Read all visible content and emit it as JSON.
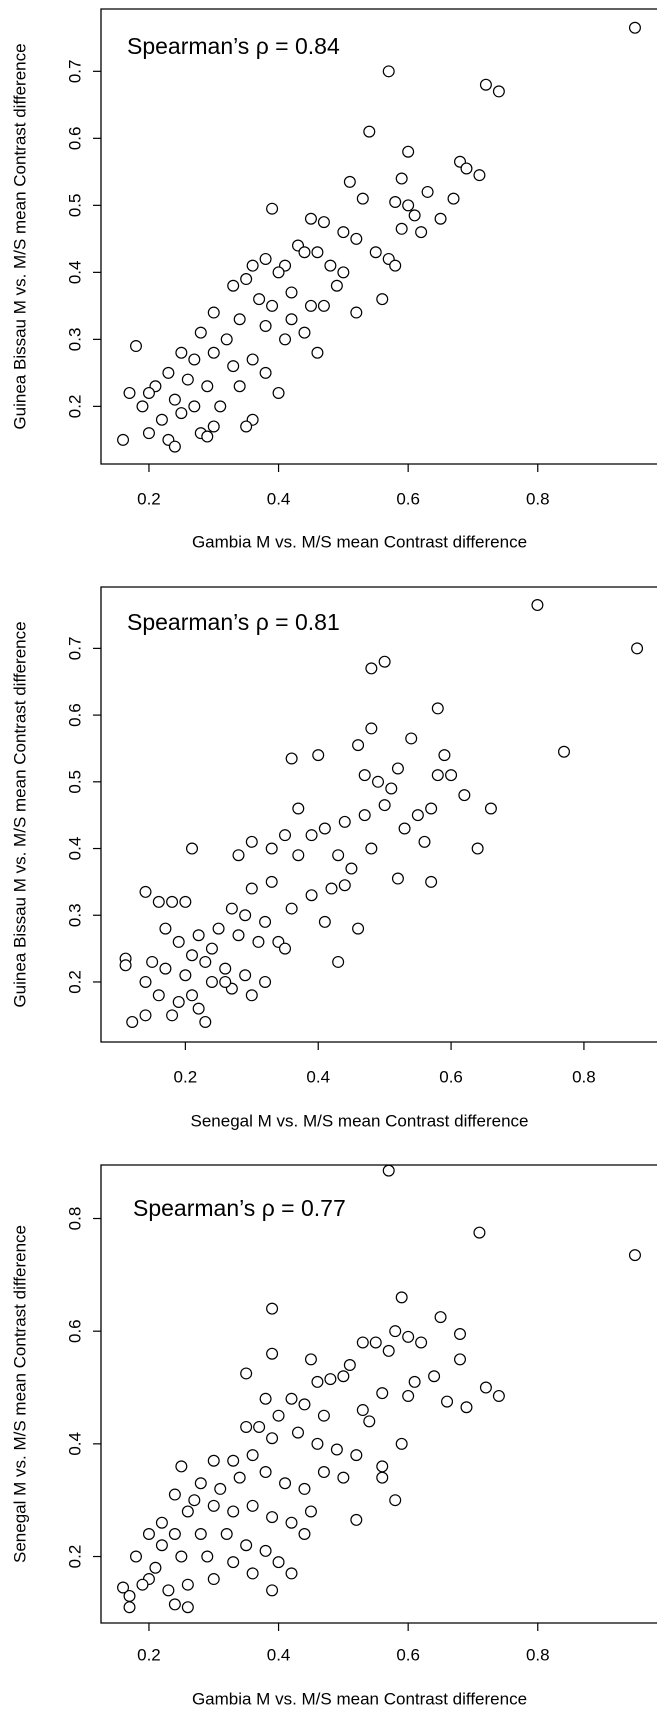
{
  "chart_data": [
    {
      "type": "scatter",
      "annotation": "Spearman’s ρ = 0.84",
      "xlabel": "Gambia M vs. M/S mean Contrast difference",
      "ylabel": "Guinea Bissau M vs. M/S mean Contrast difference",
      "xlim": [
        0.126,
        0.984
      ],
      "ylim": [
        0.114,
        0.793
      ],
      "xticks": [
        0.2,
        0.4,
        0.6,
        0.8
      ],
      "yticks": [
        0.2,
        0.3,
        0.4,
        0.5,
        0.6,
        0.7
      ],
      "color": "#000000",
      "x": [
        0.95,
        0.57,
        0.72,
        0.74,
        0.54,
        0.6,
        0.68,
        0.69,
        0.71,
        0.59,
        0.51,
        0.63,
        0.67,
        0.53,
        0.6,
        0.39,
        0.58,
        0.61,
        0.65,
        0.59,
        0.62,
        0.45,
        0.47,
        0.5,
        0.52,
        0.55,
        0.57,
        0.58,
        0.43,
        0.44,
        0.46,
        0.41,
        0.38,
        0.36,
        0.4,
        0.5,
        0.49,
        0.47,
        0.52,
        0.56,
        0.35,
        0.33,
        0.37,
        0.42,
        0.45,
        0.3,
        0.34,
        0.38,
        0.41,
        0.44,
        0.46,
        0.32,
        0.28,
        0.3,
        0.25,
        0.27,
        0.33,
        0.36,
        0.38,
        0.4,
        0.34,
        0.29,
        0.26,
        0.23,
        0.21,
        0.18,
        0.2,
        0.24,
        0.27,
        0.31,
        0.36,
        0.35,
        0.3,
        0.25,
        0.22,
        0.19,
        0.17,
        0.2,
        0.23,
        0.28,
        0.16,
        0.24,
        0.29,
        0.42,
        0.48,
        0.39
      ],
      "values": [
        0.765,
        0.7,
        0.68,
        0.67,
        0.61,
        0.58,
        0.565,
        0.555,
        0.545,
        0.54,
        0.535,
        0.52,
        0.51,
        0.51,
        0.5,
        0.495,
        0.505,
        0.485,
        0.48,
        0.465,
        0.46,
        0.48,
        0.475,
        0.46,
        0.45,
        0.43,
        0.42,
        0.41,
        0.44,
        0.43,
        0.43,
        0.41,
        0.42,
        0.41,
        0.4,
        0.4,
        0.38,
        0.35,
        0.34,
        0.36,
        0.39,
        0.38,
        0.36,
        0.37,
        0.35,
        0.34,
        0.33,
        0.32,
        0.3,
        0.31,
        0.28,
        0.3,
        0.31,
        0.28,
        0.28,
        0.27,
        0.26,
        0.27,
        0.25,
        0.22,
        0.23,
        0.23,
        0.24,
        0.25,
        0.23,
        0.29,
        0.22,
        0.21,
        0.2,
        0.2,
        0.18,
        0.17,
        0.17,
        0.19,
        0.18,
        0.2,
        0.22,
        0.16,
        0.15,
        0.16,
        0.15,
        0.14,
        0.155,
        0.33,
        0.41,
        0.35
      ]
    },
    {
      "type": "scatter",
      "annotation": "Spearman’s ρ = 0.81",
      "xlabel": "Senegal M vs. M/S mean Contrast difference",
      "ylabel": "Guinea Bissau M vs. M/S mean Contrast difference",
      "xlim": [
        0.073,
        0.91
      ],
      "ylim": [
        0.11,
        0.792
      ],
      "xticks": [
        0.2,
        0.4,
        0.6,
        0.8
      ],
      "yticks": [
        0.2,
        0.3,
        0.4,
        0.5,
        0.6,
        0.7
      ],
      "color": "#000000",
      "x": [
        0.73,
        0.88,
        0.48,
        0.5,
        0.58,
        0.48,
        0.77,
        0.36,
        0.4,
        0.46,
        0.54,
        0.59,
        0.58,
        0.6,
        0.52,
        0.47,
        0.49,
        0.51,
        0.62,
        0.66,
        0.5,
        0.57,
        0.37,
        0.44,
        0.47,
        0.55,
        0.53,
        0.56,
        0.64,
        0.48,
        0.39,
        0.41,
        0.35,
        0.3,
        0.33,
        0.37,
        0.43,
        0.45,
        0.28,
        0.52,
        0.57,
        0.42,
        0.39,
        0.44,
        0.33,
        0.3,
        0.36,
        0.41,
        0.46,
        0.43,
        0.27,
        0.29,
        0.32,
        0.25,
        0.28,
        0.31,
        0.34,
        0.35,
        0.22,
        0.24,
        0.21,
        0.14,
        0.16,
        0.18,
        0.2,
        0.17,
        0.19,
        0.21,
        0.23,
        0.26,
        0.29,
        0.32,
        0.3,
        0.27,
        0.24,
        0.2,
        0.17,
        0.15,
        0.11,
        0.11,
        0.14,
        0.16,
        0.19,
        0.22,
        0.18,
        0.14,
        0.12,
        0.23,
        0.21,
        0.26
      ],
      "values": [
        0.765,
        0.7,
        0.67,
        0.68,
        0.61,
        0.58,
        0.545,
        0.535,
        0.54,
        0.555,
        0.565,
        0.54,
        0.51,
        0.51,
        0.52,
        0.51,
        0.5,
        0.49,
        0.48,
        0.46,
        0.465,
        0.46,
        0.46,
        0.44,
        0.45,
        0.45,
        0.43,
        0.41,
        0.4,
        0.4,
        0.42,
        0.43,
        0.42,
        0.41,
        0.4,
        0.39,
        0.39,
        0.37,
        0.39,
        0.355,
        0.35,
        0.34,
        0.33,
        0.345,
        0.35,
        0.34,
        0.31,
        0.29,
        0.28,
        0.23,
        0.31,
        0.3,
        0.29,
        0.28,
        0.27,
        0.26,
        0.26,
        0.25,
        0.27,
        0.25,
        0.4,
        0.335,
        0.32,
        0.32,
        0.32,
        0.28,
        0.26,
        0.24,
        0.23,
        0.22,
        0.21,
        0.2,
        0.18,
        0.19,
        0.2,
        0.21,
        0.22,
        0.23,
        0.235,
        0.225,
        0.2,
        0.18,
        0.17,
        0.16,
        0.15,
        0.15,
        0.14,
        0.14,
        0.18,
        0.2
      ]
    },
    {
      "type": "scatter",
      "annotation": "Spearman’s ρ = 0.77",
      "xlabel": "Gambia M vs. M/S mean Contrast difference",
      "ylabel": "Senegal M vs. M/S mean Contrast difference",
      "xlim": [
        0.126,
        0.984
      ],
      "ylim": [
        0.082,
        0.895
      ],
      "xticks": [
        0.2,
        0.4,
        0.6,
        0.8
      ],
      "yticks": [
        0.2,
        0.4,
        0.6,
        0.8
      ],
      "color": "#000000",
      "x": [
        0.57,
        0.71,
        0.95,
        0.59,
        0.65,
        0.39,
        0.58,
        0.68,
        0.6,
        0.53,
        0.55,
        0.62,
        0.57,
        0.68,
        0.39,
        0.45,
        0.35,
        0.51,
        0.64,
        0.61,
        0.72,
        0.74,
        0.6,
        0.66,
        0.69,
        0.46,
        0.48,
        0.5,
        0.56,
        0.53,
        0.38,
        0.42,
        0.44,
        0.4,
        0.47,
        0.54,
        0.59,
        0.35,
        0.37,
        0.39,
        0.43,
        0.46,
        0.49,
        0.52,
        0.56,
        0.56,
        0.58,
        0.52,
        0.33,
        0.36,
        0.3,
        0.31,
        0.34,
        0.38,
        0.41,
        0.44,
        0.47,
        0.5,
        0.25,
        0.28,
        0.27,
        0.3,
        0.33,
        0.36,
        0.39,
        0.42,
        0.45,
        0.24,
        0.26,
        0.22,
        0.24,
        0.28,
        0.32,
        0.35,
        0.38,
        0.4,
        0.42,
        0.39,
        0.44,
        0.2,
        0.22,
        0.25,
        0.29,
        0.33,
        0.36,
        0.3,
        0.26,
        0.23,
        0.2,
        0.18,
        0.21,
        0.17,
        0.16,
        0.17,
        0.24,
        0.26,
        0.19
      ],
      "values": [
        0.885,
        0.775,
        0.735,
        0.66,
        0.625,
        0.64,
        0.6,
        0.595,
        0.59,
        0.58,
        0.58,
        0.58,
        0.565,
        0.55,
        0.56,
        0.55,
        0.525,
        0.54,
        0.52,
        0.51,
        0.5,
        0.485,
        0.485,
        0.475,
        0.465,
        0.51,
        0.515,
        0.52,
        0.49,
        0.46,
        0.48,
        0.48,
        0.47,
        0.45,
        0.45,
        0.44,
        0.4,
        0.43,
        0.43,
        0.41,
        0.42,
        0.4,
        0.39,
        0.38,
        0.36,
        0.34,
        0.3,
        0.265,
        0.37,
        0.38,
        0.37,
        0.32,
        0.34,
        0.35,
        0.33,
        0.32,
        0.35,
        0.34,
        0.36,
        0.33,
        0.3,
        0.29,
        0.28,
        0.29,
        0.27,
        0.26,
        0.28,
        0.31,
        0.28,
        0.26,
        0.24,
        0.24,
        0.24,
        0.22,
        0.21,
        0.19,
        0.17,
        0.14,
        0.24,
        0.24,
        0.22,
        0.2,
        0.2,
        0.19,
        0.17,
        0.16,
        0.15,
        0.14,
        0.16,
        0.2,
        0.18,
        0.13,
        0.145,
        0.11,
        0.115,
        0.11,
        0.15
      ]
    }
  ]
}
